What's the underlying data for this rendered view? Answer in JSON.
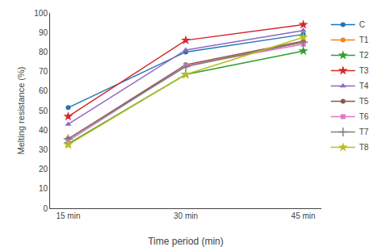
{
  "chart_data": {
    "type": "line",
    "x_label": "Time period (min)",
    "y_label": "Melting resistance (%)",
    "categories": [
      "15 min",
      "30 min",
      "45 min"
    ],
    "series": [
      {
        "name": "C",
        "marker": "circle",
        "values": [
          51.5,
          80.0,
          89.0
        ]
      },
      {
        "name": "T1",
        "marker": "circle",
        "values": [
          35.5,
          73.0,
          85.0
        ]
      },
      {
        "name": "T2",
        "marker": "star",
        "values": [
          33.0,
          68.5,
          80.5
        ]
      },
      {
        "name": "T3",
        "marker": "star",
        "values": [
          47.0,
          86.0,
          94.0
        ]
      },
      {
        "name": "T4",
        "marker": "triangle",
        "values": [
          43.0,
          81.0,
          91.0
        ]
      },
      {
        "name": "T5",
        "marker": "circle",
        "values": [
          35.5,
          73.5,
          85.5
        ]
      },
      {
        "name": "T6",
        "marker": "square",
        "values": [
          34.5,
          73.0,
          84.0
        ]
      },
      {
        "name": "T7",
        "marker": "plus",
        "values": [
          35.5,
          72.5,
          85.0
        ]
      },
      {
        "name": "T8",
        "marker": "star",
        "values": [
          32.5,
          68.5,
          87.5
        ]
      }
    ],
    "ylim": [
      0,
      100
    ],
    "yticks": [
      0,
      10,
      20,
      30,
      40,
      50,
      60,
      70,
      80,
      90,
      100
    ],
    "grid": false,
    "legend": "right"
  }
}
